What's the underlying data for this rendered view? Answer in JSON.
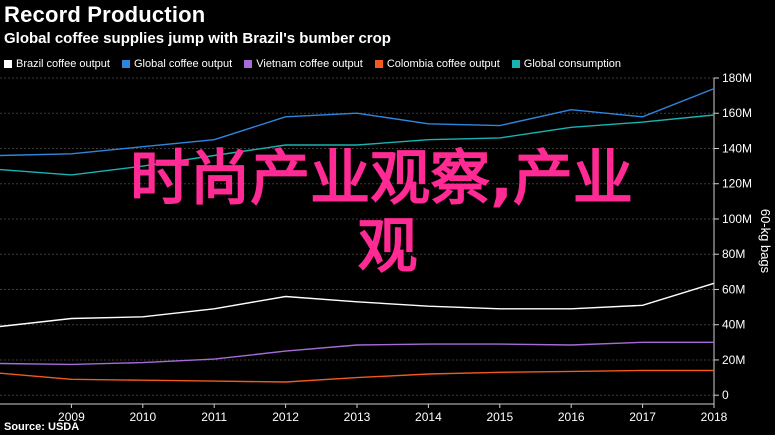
{
  "header": {
    "title": "Record Production",
    "subtitle": "Global coffee supplies jump with Brazil's bumber crop"
  },
  "overlay": {
    "line1": "时尚产业观察,产业",
    "line2": "观"
  },
  "footer": {
    "source": "Source: USDA"
  },
  "chart_data": {
    "type": "line",
    "x": [
      2008,
      2009,
      2010,
      2011,
      2012,
      2013,
      2014,
      2015,
      2016,
      2017,
      2018
    ],
    "xticks": [
      "2009",
      "2010",
      "2011",
      "2012",
      "2013",
      "2014",
      "2015",
      "2016",
      "2017",
      "2018"
    ],
    "ylabel": "60-kg bags",
    "ylim": [
      -5,
      180
    ],
    "yticks": [
      "0",
      "20M",
      "40M",
      "60M",
      "80M",
      "100M",
      "120M",
      "140M",
      "160M",
      "180M"
    ],
    "grid": true,
    "legend_position": "top",
    "series": [
      {
        "name": "Brazil coffee output",
        "color": "#ffffff",
        "values": [
          39,
          43.5,
          44.5,
          49,
          56,
          53,
          50.5,
          49,
          49,
          51,
          63.5
        ]
      },
      {
        "name": "Global coffee output",
        "color": "#2e86de",
        "values": [
          136,
          137,
          141,
          145,
          158,
          160,
          154,
          153,
          162,
          158,
          174
        ]
      },
      {
        "name": "Vietnam coffee output",
        "color": "#a66bd9",
        "values": [
          18,
          17.5,
          18.5,
          20.5,
          25,
          28.5,
          29,
          29,
          28.5,
          30,
          30
        ]
      },
      {
        "name": "Colombia coffee output",
        "color": "#f25a1d",
        "values": [
          12.5,
          9,
          8.5,
          8,
          7.5,
          10,
          12,
          13,
          13.5,
          14,
          14
        ]
      },
      {
        "name": "Global consumption",
        "color": "#1ab3b3",
        "values": [
          128,
          125,
          130,
          136,
          142,
          142,
          145,
          146,
          152,
          155,
          159
        ]
      }
    ]
  }
}
